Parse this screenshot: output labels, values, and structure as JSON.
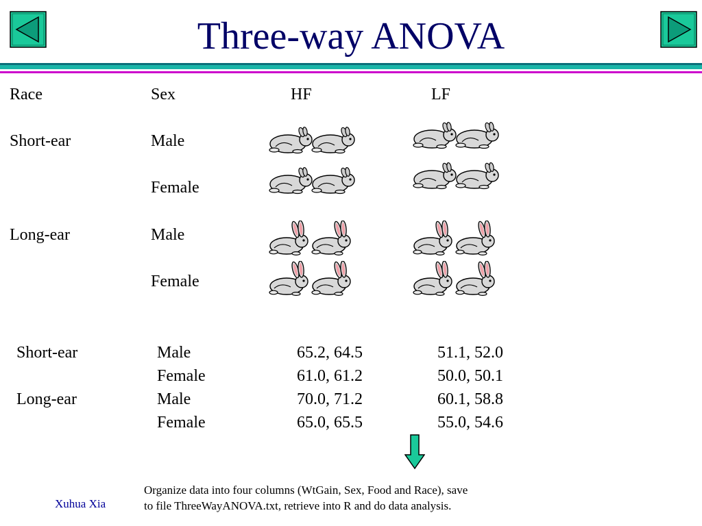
{
  "slide": {
    "title": "Three-way ANOVA",
    "title_color": "#000066",
    "accent_teal": "#1ab5a8",
    "accent_magenta": "#cc00cc",
    "nav": {
      "prev_icon": "triangle-left-icon",
      "next_icon": "triangle-right-icon",
      "button_color": "#1ac99a"
    }
  },
  "design": {
    "headers": [
      "Race",
      "Sex",
      "HF",
      "LF"
    ],
    "rows": [
      {
        "race": "Short-ear",
        "sex": "Male"
      },
      {
        "race": "",
        "sex": "Female"
      },
      {
        "race": "Long-ear",
        "sex": "Male"
      },
      {
        "race": "",
        "sex": "Female"
      }
    ],
    "rabbit_icon_short": "short-ear-rabbit-icon",
    "rabbit_icon_long": "long-ear-rabbit-icon"
  },
  "data_table": {
    "rows": [
      {
        "race": "Short-ear",
        "sex": "Male",
        "hf": "65.2, 64.5",
        "lf": "51.1, 52.0"
      },
      {
        "race": "",
        "sex": "Female",
        "hf": "61.0, 61.2",
        "lf": "50.0, 50.1"
      },
      {
        "race": "Long-ear",
        "sex": "Male",
        "hf": "70.0, 71.2",
        "lf": "60.1, 58.8"
      },
      {
        "race": "",
        "sex": "Female",
        "hf": "65.0, 65.5",
        "lf": "55.0, 54.6"
      }
    ]
  },
  "arrow_icon": "down-arrow-icon",
  "note": {
    "line1": "Organize data into four columns (WtGain, Sex, Food and Race), save",
    "line2": "to file ThreeWayANOVA.txt, retrieve into R and do data analysis."
  },
  "footer": {
    "author": "Xuhua Xia"
  }
}
